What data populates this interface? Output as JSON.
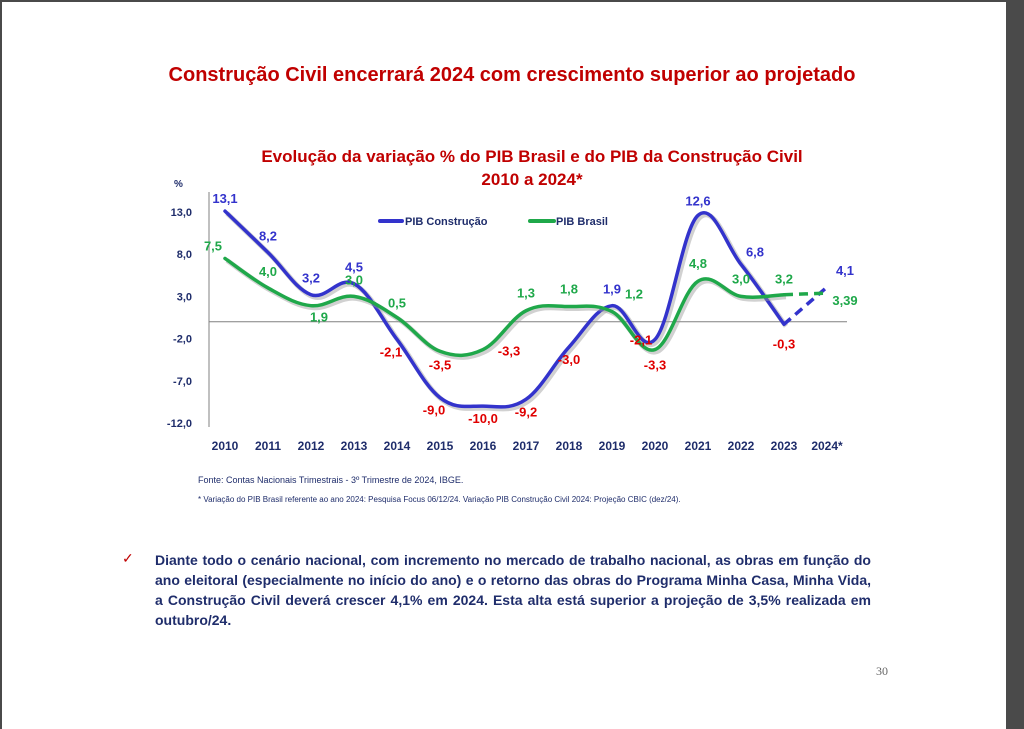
{
  "slide": {
    "title": "Construção Civil encerrará 2024 com crescimento superior ao projetado",
    "source": "Fonte: Contas Nacionais Trimestrais - 3º Trimestre de 2024, IBGE.",
    "footnote": "* Variação do PIB Brasil referente ao ano 2024: Pesquisa Focus 06/12/24. Variação PIB Construção Civil 2024: Projeção CBIC (dez/24).",
    "bullet": "Diante todo o cenário nacional, com incremento no mercado de trabalho nacional, as obras em função do ano eleitoral (especialmente no início do ano) e o retorno das obras do Programa Minha Casa, Minha Vida, a Construção Civil deverá crescer 4,1% em 2024. Esta alta está superior a projeção de 3,5% realizada em outubro/24.",
    "bullet_mark": "✓",
    "page_number": "30"
  },
  "chart_data": {
    "type": "line",
    "title_line1": "Evolução da variação % do PIB Brasil e do PIB  da Construção Civil",
    "title_line2": "2010 a 2024*",
    "ylabel": "%",
    "ylim": [
      -12,
      13
    ],
    "y_ticks": [
      "13,0",
      "8,0",
      "3,0",
      "-2,0",
      "-7,0",
      "-12,0"
    ],
    "y_tick_values": [
      13,
      8,
      3,
      -2,
      -7,
      -12
    ],
    "categories": [
      "2010",
      "2011",
      "2012",
      "2013",
      "2014",
      "2015",
      "2016",
      "2017",
      "2018",
      "2019",
      "2020",
      "2021",
      "2022",
      "2023",
      "2024*"
    ],
    "legend_position": "top-center",
    "projected_from_index": 13,
    "series": [
      {
        "name": "PIB Construção",
        "color": "#3333cc",
        "values": [
          13.1,
          8.2,
          3.2,
          4.5,
          -2.1,
          -9.0,
          -10.0,
          -9.2,
          -3.0,
          1.9,
          -2.1,
          12.6,
          6.8,
          -0.3,
          4.1
        ],
        "labels": [
          "13,1",
          "8,2",
          "3,2",
          "4,5",
          "-2,1",
          "-9,0",
          "-10,0",
          "-9,2",
          "-3,0",
          "1,9",
          "-2,1",
          "12,6",
          "6,8",
          "-0,3",
          "4,1"
        ]
      },
      {
        "name": "PIB Brasil",
        "color": "#1fa84a",
        "values": [
          7.5,
          4.0,
          1.9,
          3.0,
          0.5,
          -3.5,
          -3.3,
          1.3,
          1.8,
          1.2,
          -3.3,
          4.8,
          3.0,
          3.2,
          3.39
        ],
        "labels": [
          "7,5",
          "4,0",
          "1,9",
          "3,0",
          "0,5",
          "-3,5",
          "-3,3",
          "1,3",
          "1,8",
          "1,2",
          "-3,3",
          "4,8",
          "3,0",
          "3,2",
          "3,39"
        ]
      }
    ],
    "label_colors": {
      "positive": "#3333cc",
      "negative": "#e00000",
      "positive_green": "#1fa84a"
    }
  }
}
